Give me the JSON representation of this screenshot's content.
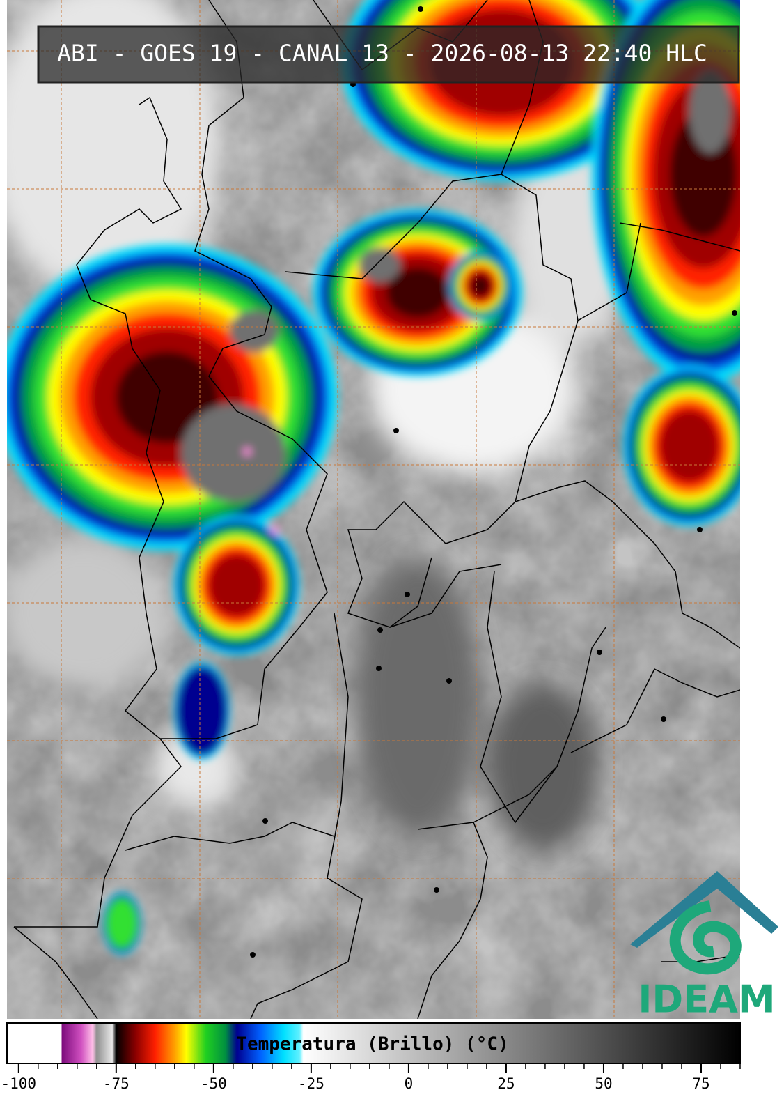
{
  "header": {
    "title": "ABI - GOES 19 - CANAL 13 - 2026-08-13 22:40 HLC"
  },
  "logo": {
    "text": "IDEAM"
  },
  "colorbar": {
    "label": "Temperatura (Brillo) (°C)",
    "lim": [
      -103,
      85
    ],
    "ticks": [
      -100,
      -75,
      -50,
      -25,
      0,
      25,
      50,
      75
    ],
    "minor_step": 5,
    "colormap": [
      [
        -103,
        "#ffffff"
      ],
      [
        -89,
        "#ffffff"
      ],
      [
        -89,
        "#7a0a7a"
      ],
      [
        -84,
        "#d050c0"
      ],
      [
        -81,
        "#ffc0e8"
      ],
      [
        -80,
        "#909090"
      ],
      [
        -76,
        "#e8e8e8"
      ],
      [
        -75,
        "#000000"
      ],
      [
        -70,
        "#8b0000"
      ],
      [
        -65,
        "#ff2000"
      ],
      [
        -60,
        "#ffa000"
      ],
      [
        -57,
        "#ffff00"
      ],
      [
        -52,
        "#20d020"
      ],
      [
        -47,
        "#009040"
      ],
      [
        -44,
        "#000090"
      ],
      [
        -38,
        "#0060ff"
      ],
      [
        -32,
        "#00e0ff"
      ],
      [
        -28,
        "#60f0ff"
      ],
      [
        -27,
        "#ffffff"
      ],
      [
        85,
        "#000000"
      ]
    ]
  }
}
